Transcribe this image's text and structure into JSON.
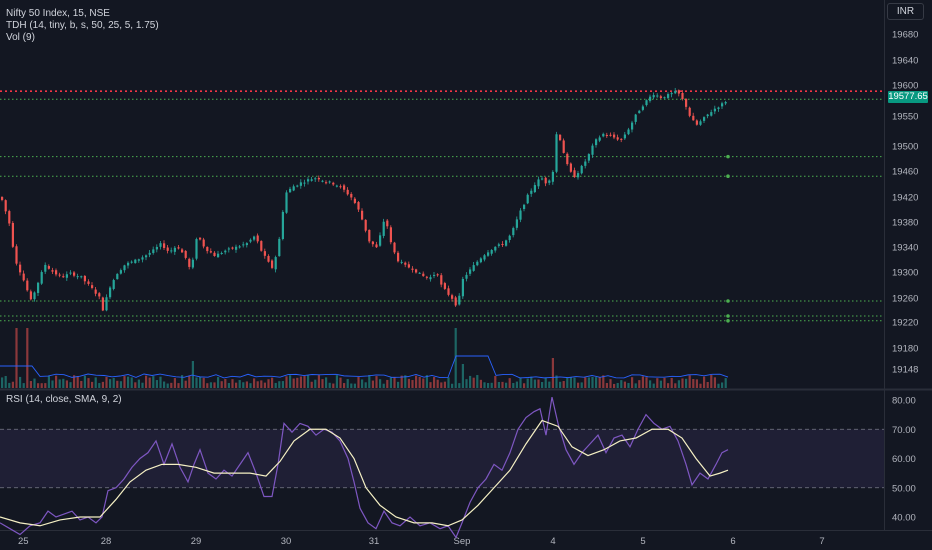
{
  "header": {
    "symbol_line": "Nifty 50 Index, 15, NSE",
    "indicator_tdh": "TDH (14, tiny, b, s, 50, 25, 5, 1.75)",
    "indicator_vol": "Vol (9)",
    "currency": "INR",
    "last_price": "19577.65"
  },
  "rsi_panel": {
    "label": "RSI (14, close, SMA, 9, 2)"
  },
  "colors": {
    "background": "#131722",
    "up": "#26a69a",
    "down": "#ef5350",
    "resistance": "#f23645",
    "support": "#4caf50",
    "rsi_line": "#7e57c2",
    "rsi_sma": "#f5f0c4",
    "axis_text": "#b2b5be"
  },
  "chart_data": [
    {
      "type": "candlestick",
      "title": "Nifty 50 Index, 15, NSE",
      "xlabel": "",
      "ylabel": "",
      "ylim": [
        19120,
        19710
      ],
      "y_ticks": [
        19680,
        19640,
        19600,
        19550,
        19500,
        19460,
        19420,
        19380,
        19340,
        19300,
        19260,
        19220,
        19180,
        19148
      ],
      "x_ticks": [
        "25",
        "28",
        "29",
        "30",
        "31",
        "Sep",
        "4",
        "5",
        "6",
        "7"
      ],
      "last_value": 19577.65,
      "horizontal_levels": [
        {
          "value": 19590,
          "style": "dotted",
          "color": "#f23645"
        },
        {
          "value": 19577,
          "style": "dotted",
          "color": "#4caf50"
        },
        {
          "value": 19483,
          "style": "dotted",
          "color": "#4caf50"
        },
        {
          "value": 19452,
          "style": "dotted",
          "color": "#4caf50"
        },
        {
          "value": 19255,
          "style": "dotted",
          "color": "#4caf50"
        },
        {
          "value": 19230,
          "style": "dotted",
          "color": "#4caf50"
        },
        {
          "value": 19222,
          "style": "dotted",
          "color": "#4caf50"
        }
      ],
      "close_path": [
        [
          0,
          19420
        ],
        [
          8,
          19380
        ],
        [
          14,
          19320
        ],
        [
          22,
          19290
        ],
        [
          30,
          19255
        ],
        [
          36,
          19280
        ],
        [
          44,
          19312
        ],
        [
          52,
          19300
        ],
        [
          60,
          19292
        ],
        [
          70,
          19298
        ],
        [
          80,
          19292
        ],
        [
          90,
          19276
        ],
        [
          98,
          19262
        ],
        [
          102,
          19240
        ],
        [
          108,
          19275
        ],
        [
          116,
          19298
        ],
        [
          124,
          19312
        ],
        [
          134,
          19318
        ],
        [
          144,
          19326
        ],
        [
          152,
          19334
        ],
        [
          160,
          19345
        ],
        [
          168,
          19332
        ],
        [
          176,
          19342
        ],
        [
          184,
          19325
        ],
        [
          190,
          19300
        ],
        [
          196,
          19360
        ],
        [
          204,
          19338
        ],
        [
          214,
          19326
        ],
        [
          224,
          19334
        ],
        [
          236,
          19340
        ],
        [
          246,
          19346
        ],
        [
          254,
          19358
        ],
        [
          260,
          19335
        ],
        [
          266,
          19318
        ],
        [
          272,
          19305
        ],
        [
          278,
          19350
        ],
        [
          284,
          19425
        ],
        [
          292,
          19436
        ],
        [
          300,
          19442
        ],
        [
          308,
          19447
        ],
        [
          316,
          19450
        ],
        [
          324,
          19444
        ],
        [
          334,
          19440
        ],
        [
          342,
          19432
        ],
        [
          350,
          19420
        ],
        [
          356,
          19405
        ],
        [
          362,
          19380
        ],
        [
          368,
          19350
        ],
        [
          376,
          19338
        ],
        [
          384,
          19390
        ],
        [
          390,
          19345
        ],
        [
          396,
          19320
        ],
        [
          404,
          19310
        ],
        [
          412,
          19305
        ],
        [
          420,
          19295
        ],
        [
          428,
          19290
        ],
        [
          436,
          19300
        ],
        [
          440,
          19280
        ],
        [
          446,
          19268
        ],
        [
          452,
          19258
        ],
        [
          456,
          19245
        ],
        [
          462,
          19290
        ],
        [
          470,
          19305
        ],
        [
          478,
          19320
        ],
        [
          486,
          19332
        ],
        [
          494,
          19340
        ],
        [
          502,
          19345
        ],
        [
          510,
          19360
        ],
        [
          518,
          19392
        ],
        [
          526,
          19420
        ],
        [
          534,
          19440
        ],
        [
          540,
          19450
        ],
        [
          546,
          19440
        ],
        [
          552,
          19460
        ],
        [
          556,
          19530
        ],
        [
          560,
          19505
        ],
        [
          566,
          19470
        ],
        [
          572,
          19450
        ],
        [
          578,
          19460
        ],
        [
          586,
          19480
        ],
        [
          594,
          19508
        ],
        [
          602,
          19520
        ],
        [
          610,
          19516
        ],
        [
          620,
          19510
        ],
        [
          628,
          19530
        ],
        [
          636,
          19555
        ],
        [
          644,
          19572
        ],
        [
          652,
          19586
        ],
        [
          660,
          19580
        ],
        [
          668,
          19584
        ],
        [
          676,
          19590
        ],
        [
          684,
          19570
        ],
        [
          690,
          19545
        ],
        [
          696,
          19535
        ],
        [
          704,
          19548
        ],
        [
          712,
          19560
        ],
        [
          720,
          19568
        ],
        [
          728,
          19577.65
        ]
      ],
      "volume_spikes": [
        {
          "x": 14,
          "value": 1.0
        },
        {
          "x": 26,
          "value": 1.0
        },
        {
          "x": 192,
          "value": 0.45
        },
        {
          "x": 456,
          "value": 1.0
        },
        {
          "x": 462,
          "value": 0.4
        },
        {
          "x": 552,
          "value": 0.5
        }
      ]
    },
    {
      "type": "line",
      "title": "RSI (14, close, SMA, 9, 2)",
      "xlabel": "",
      "ylabel": "",
      "ylim": [
        35,
        85
      ],
      "y_ticks": [
        80,
        70,
        60,
        50,
        40
      ],
      "band": [
        50,
        70
      ],
      "series": [
        {
          "name": "RSI",
          "color": "#7e57c2",
          "points": [
            [
              0,
              38
            ],
            [
              10,
              36
            ],
            [
              20,
              34
            ],
            [
              30,
              37
            ],
            [
              40,
              38
            ],
            [
              48,
              42
            ],
            [
              56,
              40
            ],
            [
              64,
              41
            ],
            [
              72,
              42
            ],
            [
              80,
              39
            ],
            [
              88,
              40
            ],
            [
              96,
              38
            ],
            [
              102,
              40
            ],
            [
              108,
              49
            ],
            [
              116,
              50
            ],
            [
              124,
              53
            ],
            [
              132,
              57
            ],
            [
              140,
              60
            ],
            [
              148,
              62
            ],
            [
              156,
              66
            ],
            [
              164,
              58
            ],
            [
              172,
              65
            ],
            [
              180,
              57
            ],
            [
              188,
              52
            ],
            [
              194,
              58
            ],
            [
              200,
              63
            ],
            [
              208,
              55
            ],
            [
              216,
              53
            ],
            [
              224,
              56
            ],
            [
              232,
              54
            ],
            [
              240,
              58
            ],
            [
              248,
              62
            ],
            [
              256,
              55
            ],
            [
              264,
              47
            ],
            [
              272,
              47
            ],
            [
              278,
              58
            ],
            [
              284,
              72
            ],
            [
              292,
              69
            ],
            [
              300,
              72
            ],
            [
              308,
              71
            ],
            [
              316,
              68
            ],
            [
              324,
              70
            ],
            [
              332,
              69
            ],
            [
              340,
              66
            ],
            [
              348,
              60
            ],
            [
              354,
              52
            ],
            [
              360,
              43
            ],
            [
              368,
              38
            ],
            [
              376,
              36
            ],
            [
              384,
              42
            ],
            [
              392,
              38
            ],
            [
              400,
              37
            ],
            [
              410,
              40
            ],
            [
              420,
              37
            ],
            [
              430,
              38
            ],
            [
              440,
              36
            ],
            [
              448,
              37
            ],
            [
              456,
              33
            ],
            [
              462,
              38
            ],
            [
              470,
              45
            ],
            [
              478,
              50
            ],
            [
              486,
              53
            ],
            [
              494,
              58
            ],
            [
              502,
              56
            ],
            [
              510,
              62
            ],
            [
              518,
              70
            ],
            [
              526,
              74
            ],
            [
              534,
              76
            ],
            [
              540,
              77
            ],
            [
              546,
              68
            ],
            [
              552,
              81
            ],
            [
              558,
              72
            ],
            [
              566,
              63
            ],
            [
              574,
              58
            ],
            [
              582,
              62
            ],
            [
              590,
              65
            ],
            [
              598,
              68
            ],
            [
              606,
              62
            ],
            [
              614,
              67
            ],
            [
              622,
              68
            ],
            [
              630,
              64
            ],
            [
              638,
              70
            ],
            [
              646,
              75
            ],
            [
              654,
              72
            ],
            [
              662,
              70
            ],
            [
              670,
              71
            ],
            [
              678,
              66
            ],
            [
              686,
              58
            ],
            [
              692,
              51
            ],
            [
              700,
              55
            ],
            [
              708,
              53
            ],
            [
              716,
              58
            ],
            [
              722,
              62
            ],
            [
              728,
              63
            ]
          ]
        },
        {
          "name": "SMA",
          "color": "#f5f0c4",
          "points": [
            [
              0,
              40
            ],
            [
              20,
              38
            ],
            [
              40,
              37
            ],
            [
              60,
              39
            ],
            [
              80,
              40
            ],
            [
              100,
              40
            ],
            [
              116,
              46
            ],
            [
              130,
              52
            ],
            [
              146,
              56
            ],
            [
              162,
              58
            ],
            [
              178,
              58
            ],
            [
              196,
              57
            ],
            [
              214,
              55
            ],
            [
              232,
              55
            ],
            [
              250,
              55
            ],
            [
              266,
              54
            ],
            [
              280,
              59
            ],
            [
              294,
              66
            ],
            [
              310,
              70
            ],
            [
              326,
              70
            ],
            [
              340,
              67
            ],
            [
              354,
              60
            ],
            [
              366,
              50
            ],
            [
              380,
              44
            ],
            [
              396,
              40
            ],
            [
              414,
              38
            ],
            [
              432,
              38
            ],
            [
              448,
              37
            ],
            [
              462,
              39
            ],
            [
              478,
              44
            ],
            [
              494,
              50
            ],
            [
              510,
              56
            ],
            [
              526,
              65
            ],
            [
              542,
              73
            ],
            [
              558,
              71
            ],
            [
              572,
              64
            ],
            [
              588,
              61
            ],
            [
              604,
              63
            ],
            [
              620,
              66
            ],
            [
              636,
              67
            ],
            [
              652,
              70
            ],
            [
              668,
              70
            ],
            [
              682,
              67
            ],
            [
              696,
              60
            ],
            [
              710,
              54
            ],
            [
              720,
              55
            ],
            [
              728,
              56
            ]
          ]
        }
      ]
    }
  ]
}
